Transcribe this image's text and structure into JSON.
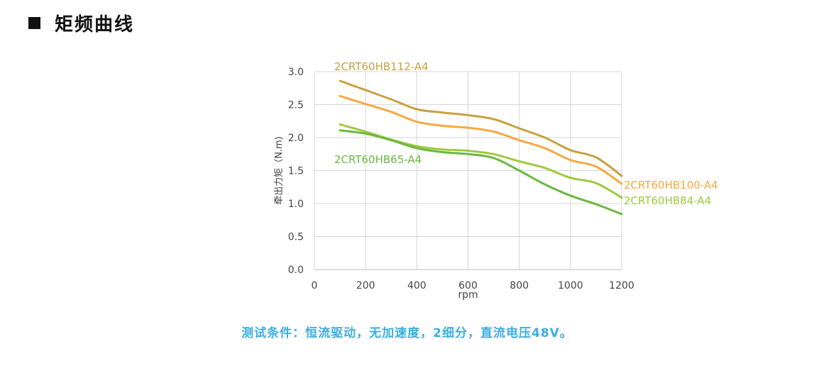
{
  "section": {
    "title": "矩频曲线"
  },
  "caption": "测试条件：恒流驱动，无加速度，2细分，直流电压48V。",
  "chart_data": {
    "type": "line",
    "xlabel": "rpm",
    "ylabel": "牵出力矩（N.m)",
    "xlim": [
      0,
      1200
    ],
    "ylim": [
      0,
      3.0
    ],
    "xticks": [
      "0",
      "200",
      "400",
      "600",
      "800",
      "1000",
      "1200"
    ],
    "yticks": [
      "0.0",
      "0.5",
      "1.0",
      "1.5",
      "2.0",
      "2.5",
      "3.0"
    ],
    "grid": true,
    "x": [
      100,
      200,
      300,
      400,
      500,
      600,
      700,
      800,
      900,
      1000,
      1100,
      1200
    ],
    "series": [
      {
        "name": "2CRT60HB112-A4",
        "color": "#c9a040",
        "values": [
          2.86,
          2.72,
          2.58,
          2.43,
          2.38,
          2.34,
          2.28,
          2.14,
          2.0,
          1.81,
          1.7,
          1.42
        ]
      },
      {
        "name": "2CRT60HB100-A4",
        "color": "#f7a840",
        "values": [
          2.63,
          2.51,
          2.39,
          2.24,
          2.18,
          2.15,
          2.09,
          1.96,
          1.84,
          1.66,
          1.56,
          1.3
        ]
      },
      {
        "name": "2CRT60HB84-A4",
        "color": "#a0c840",
        "values": [
          2.2,
          2.09,
          1.97,
          1.87,
          1.82,
          1.8,
          1.75,
          1.64,
          1.54,
          1.39,
          1.31,
          1.09
        ]
      },
      {
        "name": "2CRT60HB65-A4",
        "color": "#6ab840",
        "values": [
          2.11,
          2.06,
          1.96,
          1.84,
          1.78,
          1.75,
          1.69,
          1.5,
          1.29,
          1.12,
          0.99,
          0.84
        ]
      }
    ]
  }
}
